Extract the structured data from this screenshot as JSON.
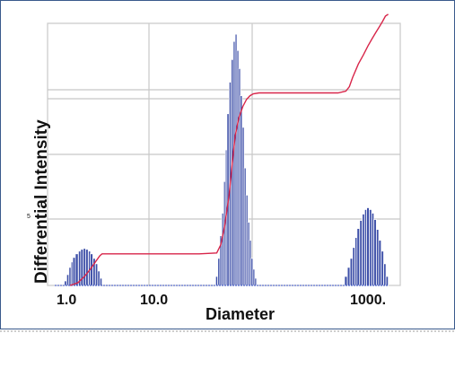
{
  "chart_data": {
    "type": "bar",
    "title": "",
    "xlabel": "Diameter",
    "ylabel": "Differential Intensity",
    "x_scale": "log",
    "x_tick_labels": [
      "1.0",
      "10.0",
      "1000."
    ],
    "y_tick_labels": [
      "5"
    ],
    "grid": true,
    "legend": "none",
    "colors": {
      "bars": "#3d4fa8",
      "bar_edge": "#ffffff",
      "cumulative_line": "#d8264a",
      "grid": "#c8c8c8",
      "baseline": "#3a55c8"
    },
    "series": [
      {
        "type": "bar",
        "x": [
          0.9,
          0.95,
          1.0,
          1.05,
          1.1,
          1.17,
          1.25,
          1.32,
          1.4,
          1.48,
          1.57,
          1.65,
          1.75,
          1.85,
          1.95,
          2.05
        ],
        "values": [
          0.5,
          1.2,
          2.0,
          2.6,
          3.1,
          3.5,
          3.8,
          4.0,
          4.1,
          4.0,
          3.8,
          3.5,
          3.0,
          2.4,
          1.6,
          0.8
        ]
      },
      {
        "type": "bar",
        "x": [
          30,
          31.5,
          33,
          34.5,
          36,
          37.5,
          39,
          41,
          43,
          45,
          47,
          49,
          51,
          53,
          55.5,
          58,
          60.5,
          63,
          65.5,
          68,
          71,
          74
        ],
        "values": [
          1.0,
          3.0,
          5.5,
          8.0,
          11.5,
          15.0,
          19.0,
          22.5,
          25.0,
          27.0,
          27.8,
          26.0,
          24.0,
          21.0,
          17.5,
          13.0,
          10.0,
          7.0,
          5.0,
          3.0,
          1.8,
          0.8
        ]
      },
      {
        "type": "bar",
        "x": [
          600,
          640,
          680,
          720,
          760,
          800,
          850,
          900,
          950,
          1000,
          1060,
          1120,
          1180,
          1250,
          1320,
          1400,
          1480,
          1560
        ],
        "values": [
          1.0,
          2.0,
          3.0,
          4.2,
          5.3,
          6.3,
          7.2,
          7.9,
          8.4,
          8.6,
          8.4,
          8.0,
          7.3,
          6.2,
          5.0,
          3.8,
          2.4,
          1.0
        ]
      },
      {
        "type": "line",
        "x": [
          1.0,
          1.2,
          1.4,
          1.6,
          1.8,
          2.0,
          2.1,
          2.2,
          5,
          10,
          20,
          30,
          33,
          36,
          40,
          43,
          46,
          50,
          55,
          60,
          65,
          70,
          80,
          100,
          200,
          500,
          600,
          650,
          700,
          800,
          900,
          1000,
          1100,
          1200,
          1300,
          1400,
          1500,
          1600
        ],
        "values": [
          0,
          0.3,
          1.0,
          1.8,
          2.6,
          3.3,
          3.5,
          3.5,
          3.5,
          3.5,
          3.5,
          3.6,
          4.5,
          6.5,
          10.0,
          13.5,
          16.5,
          18.5,
          19.8,
          20.6,
          21.0,
          21.2,
          21.3,
          21.3,
          21.3,
          21.3,
          21.5,
          22.0,
          23.0,
          24.5,
          25.5,
          26.5,
          27.3,
          28.0,
          28.6,
          29.2,
          29.8,
          30.0
        ]
      }
    ]
  }
}
